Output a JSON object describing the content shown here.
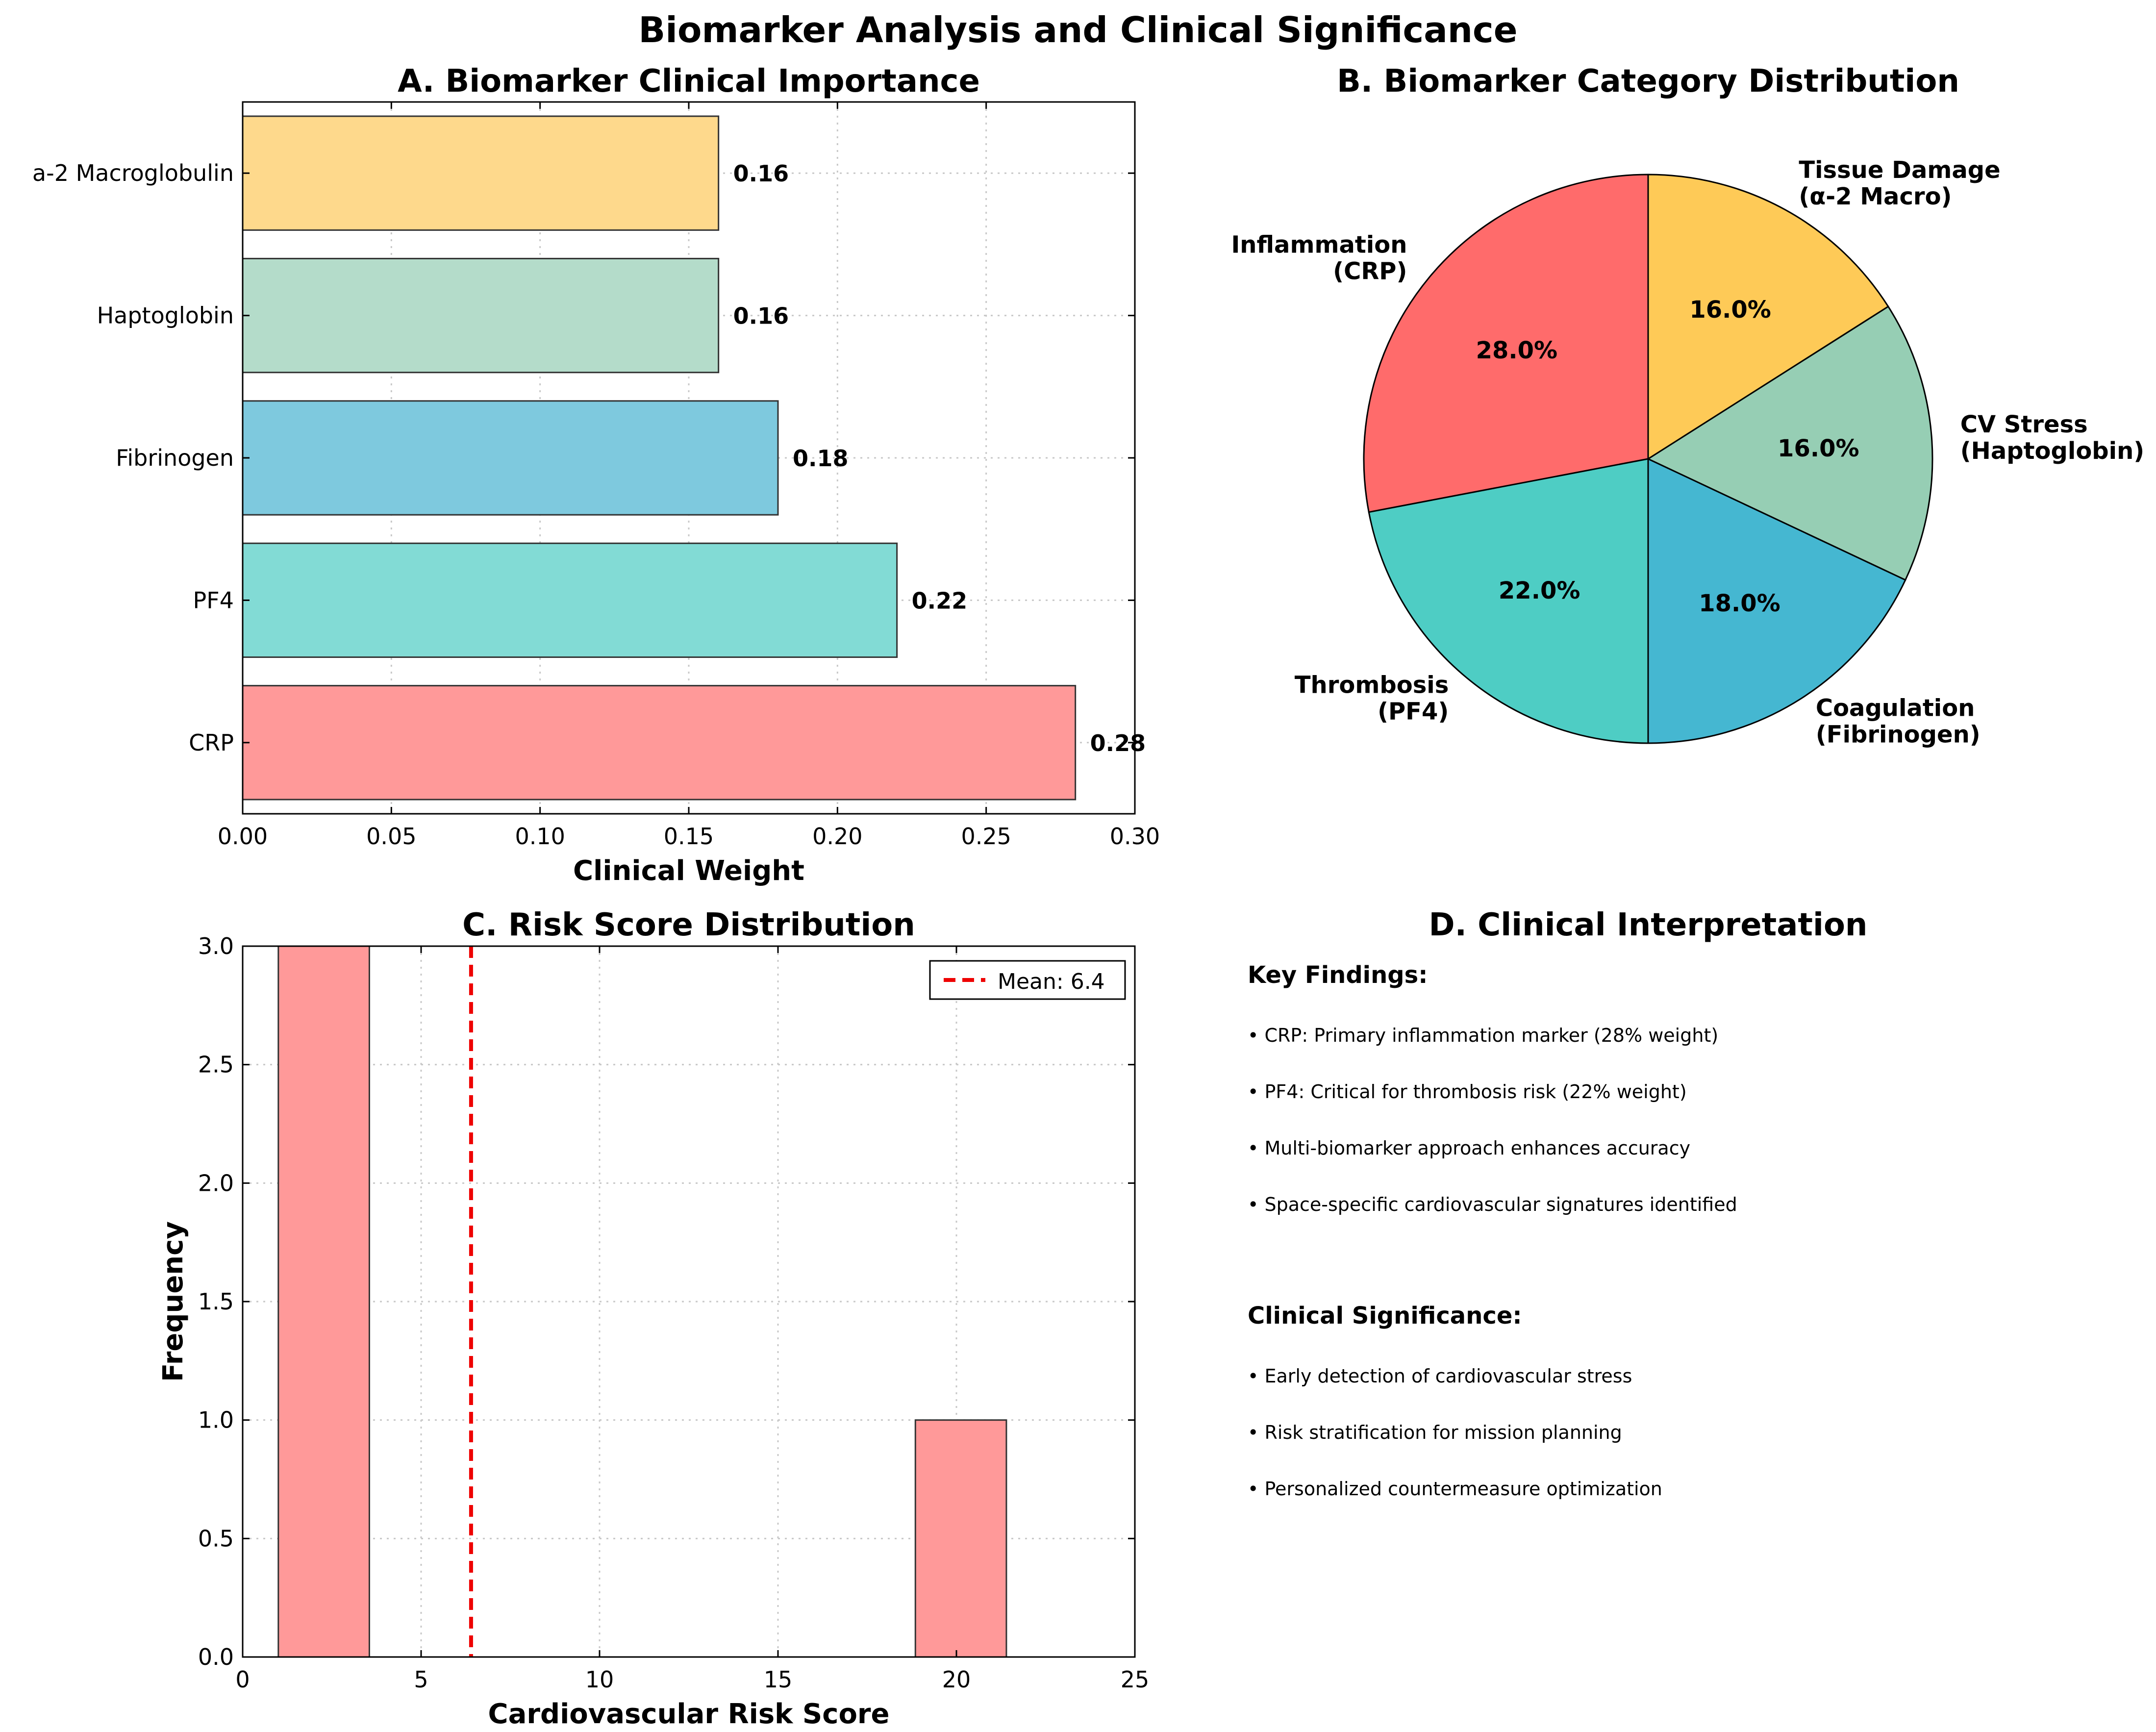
{
  "figure": {
    "title": "Biomarker Analysis and Clinical Significance"
  },
  "chart_data": [
    {
      "id": "A",
      "type": "bar",
      "orientation": "horizontal",
      "title": "A. Biomarker Clinical Importance",
      "xlabel": "Clinical Weight",
      "ylabel": "",
      "categories": [
        "CRP",
        "PF4",
        "Fibrinogen",
        "Haptoglobin",
        "a-2 Macroglobulin"
      ],
      "values": [
        0.28,
        0.22,
        0.18,
        0.16,
        0.16
      ],
      "value_labels": [
        "0.28",
        "0.22",
        "0.18",
        "0.16",
        "0.16"
      ],
      "colors": [
        "#ff9999",
        "#82dbd5",
        "#7ec9de",
        "#b4dcca",
        "#fed98c"
      ],
      "xlim": [
        0,
        0.3
      ],
      "xticks": [
        0.0,
        0.05,
        0.1,
        0.15,
        0.2,
        0.25,
        0.3
      ],
      "xtick_labels": [
        "0.00",
        "0.05",
        "0.10",
        "0.15",
        "0.20",
        "0.25",
        "0.30"
      ],
      "grid": true
    },
    {
      "id": "B",
      "type": "pie",
      "title": "B. Biomarker Category Distribution",
      "labels": [
        "Inflammation\n(CRP)",
        "Thrombosis\n(PF4)",
        "Coagulation\n(Fibrinogen)",
        "CV Stress\n(Haptoglobin)",
        "Tissue Damage\n(α-2 Macro)"
      ],
      "values": [
        28,
        22,
        18,
        16,
        16
      ],
      "pct_labels": [
        "28.0%",
        "22.0%",
        "18.0%",
        "16.0%",
        "16.0%"
      ],
      "colors": [
        "#ff6b6b",
        "#4ecdc4",
        "#45b7d1",
        "#96ceb4",
        "#feca57"
      ],
      "start_angle": 90,
      "direction": "counterclockwise"
    },
    {
      "id": "C",
      "type": "bar",
      "subtype": "histogram",
      "title": "C. Risk Score Distribution",
      "xlabel": "Cardiovascular Risk Score",
      "ylabel": "Frequency",
      "bins": [
        {
          "x0": 1.0,
          "x1": 3.55,
          "count": 3
        },
        {
          "x0": 18.85,
          "x1": 21.4,
          "count": 1
        }
      ],
      "bar_color": "#ff9999",
      "xlim": [
        0,
        25
      ],
      "ylim": [
        0,
        3.0
      ],
      "xticks": [
        0,
        5,
        10,
        15,
        20,
        25
      ],
      "xtick_labels": [
        "0",
        "5",
        "10",
        "15",
        "20",
        "25"
      ],
      "yticks": [
        0,
        0.5,
        1.0,
        1.5,
        2.0,
        2.5,
        3.0
      ],
      "ytick_labels": [
        "0.0",
        "0.5",
        "1.0",
        "1.5",
        "2.0",
        "2.5",
        "3.0"
      ],
      "mean_line": {
        "x": 6.4,
        "color": "#ee0000",
        "label": "Mean: 6.4"
      },
      "legend": "top-right",
      "grid": true
    }
  ],
  "panelD": {
    "title": "D. Clinical Interpretation",
    "key_findings_heading": "Key Findings:",
    "key_findings": [
      "• CRP: Primary inflammation marker (28% weight)",
      "• PF4: Critical for thrombosis risk (22% weight)",
      "• Multi-biomarker approach enhances accuracy",
      "• Space-specific cardiovascular signatures identified"
    ],
    "significance_heading": "Clinical Significance:",
    "significance": [
      "• Early detection of cardiovascular stress",
      "• Risk stratification for mission planning",
      "• Personalized countermeasure optimization"
    ]
  }
}
